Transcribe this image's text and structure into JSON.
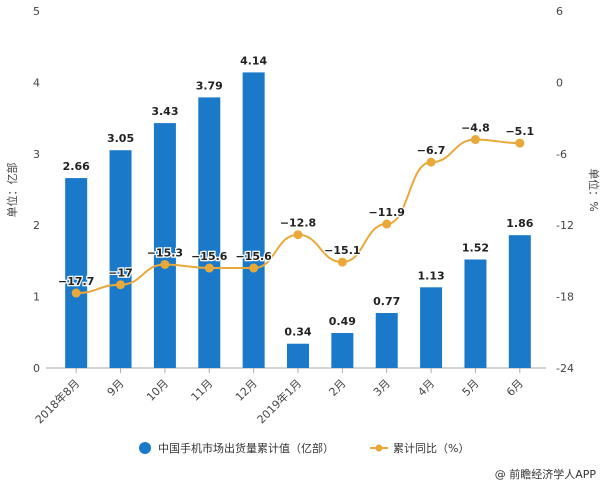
{
  "chart_data": {
    "type": "bar+line",
    "categories": [
      "2018年8月",
      "9月",
      "10月",
      "11月",
      "12月",
      "2019年1月",
      "2月",
      "3月",
      "4月",
      "5月",
      "6月"
    ],
    "series": [
      {
        "name": "中国手机市场出货量累计值（亿部）",
        "type": "bar",
        "axis": "left",
        "color": "#1a7ac9",
        "values": [
          2.66,
          3.05,
          3.43,
          3.79,
          4.14,
          0.34,
          0.49,
          0.77,
          1.13,
          1.52,
          1.86
        ]
      },
      {
        "name": "累计同比（%）",
        "type": "line",
        "axis": "right",
        "color": "#e8a93a",
        "values": [
          -17.7,
          -17,
          -15.3,
          -15.6,
          -15.6,
          -12.8,
          -15.1,
          -11.9,
          -6.7,
          -4.8,
          -5.1
        ]
      }
    ],
    "value_labels_line": [
      "-17.7",
      "-17",
      "-15.3",
      "-15.6",
      "-15.6",
      "-12.8",
      "-15.1",
      "-11.9",
      "-6.7",
      "-4.8",
      "-5.1"
    ],
    "ylabel": "单位：亿部",
    "y2label": "单位：%",
    "ylim": [
      0,
      5
    ],
    "yticks": [
      0,
      1,
      2,
      3,
      4,
      5
    ],
    "y2lim": [
      -24,
      6
    ],
    "y2ticks": [
      -24,
      -18,
      -12,
      -6,
      0,
      6
    ],
    "legend_position": "bottom",
    "grid": false
  },
  "source": "@ 前瞻经济学人APP"
}
